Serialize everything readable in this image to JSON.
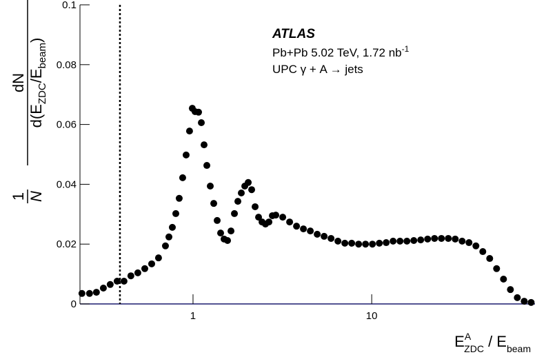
{
  "chart_data": {
    "type": "scatter",
    "color": "#000000",
    "log_x": true,
    "xlim": [
      0.233,
      82
    ],
    "xticks": [
      1,
      10
    ],
    "ylim": [
      0,
      0.1
    ],
    "yticks": [
      0,
      0.02,
      0.04,
      0.06,
      0.08,
      0.1
    ],
    "cut_x": 0.39,
    "x_label": [
      "E",
      "A",
      "ZDC",
      " / E",
      "beam"
    ],
    "y_label": {
      "factor_num": "1",
      "factor_den": "N",
      "num": "dN",
      "den": [
        "d(E",
        "ZDC",
        "/E",
        "beam",
        ")"
      ]
    },
    "annotations": {
      "experiment": "ATLAS",
      "system": "Pb+Pb 5.02 TeV, 1.72 nb",
      "system_sup": "-1",
      "process": "UPC γ + A → jets"
    },
    "x": [
      0.239,
      0.2635,
      0.288,
      0.315,
      0.344,
      0.376,
      0.411,
      0.449,
      0.491,
      0.537,
      0.587,
      0.641,
      0.701,
      0.733,
      0.766,
      0.801,
      0.837,
      0.875,
      0.915,
      0.956,
      0.991,
      1.027,
      1.074,
      1.113,
      1.153,
      1.195,
      1.249,
      1.306,
      1.365,
      1.427,
      1.492,
      1.56,
      1.631,
      1.705,
      1.782,
      1.863,
      1.948,
      2.037,
      2.129,
      2.226,
      2.327,
      2.433,
      2.543,
      2.659,
      2.78,
      2.906,
      3.177,
      3.472,
      3.795,
      4.148,
      4.534,
      4.955,
      5.416,
      5.92,
      6.47,
      7.072,
      7.727,
      8.446,
      9.233,
      10.09,
      11.03,
      12.05,
      13.17,
      14.4,
      15.74,
      17.2,
      18.8,
      20.55,
      22.46,
      24.55,
      26.83,
      29.33,
      32.06,
      35.03,
      38.29,
      41.85,
      45.74,
      49.99,
      54.65,
      59.73,
      65.28,
      71.35,
      77.99
    ],
    "values": [
      0.0035,
      0.0035,
      0.0039,
      0.0053,
      0.0065,
      0.0076,
      0.0076,
      0.0094,
      0.0104,
      0.0118,
      0.0134,
      0.0154,
      0.0194,
      0.0224,
      0.0256,
      0.0302,
      0.0353,
      0.0422,
      0.0498,
      0.0578,
      0.0654,
      0.0643,
      0.0641,
      0.0606,
      0.0532,
      0.0463,
      0.0394,
      0.0336,
      0.0279,
      0.0237,
      0.0217,
      0.0212,
      0.0244,
      0.0302,
      0.0343,
      0.0371,
      0.0394,
      0.0406,
      0.0382,
      0.0325,
      0.029,
      0.0274,
      0.0267,
      0.0274,
      0.0295,
      0.0297,
      0.029,
      0.0274,
      0.026,
      0.0251,
      0.0244,
      0.0233,
      0.0226,
      0.0219,
      0.021,
      0.0203,
      0.0203,
      0.02,
      0.02,
      0.02,
      0.0203,
      0.0205,
      0.021,
      0.021,
      0.021,
      0.0212,
      0.0214,
      0.0217,
      0.0219,
      0.0219,
      0.0219,
      0.0217,
      0.021,
      0.0205,
      0.0194,
      0.0175,
      0.0152,
      0.0118,
      0.0083,
      0.0048,
      0.0021,
      0.0009,
      0.0005
    ]
  }
}
